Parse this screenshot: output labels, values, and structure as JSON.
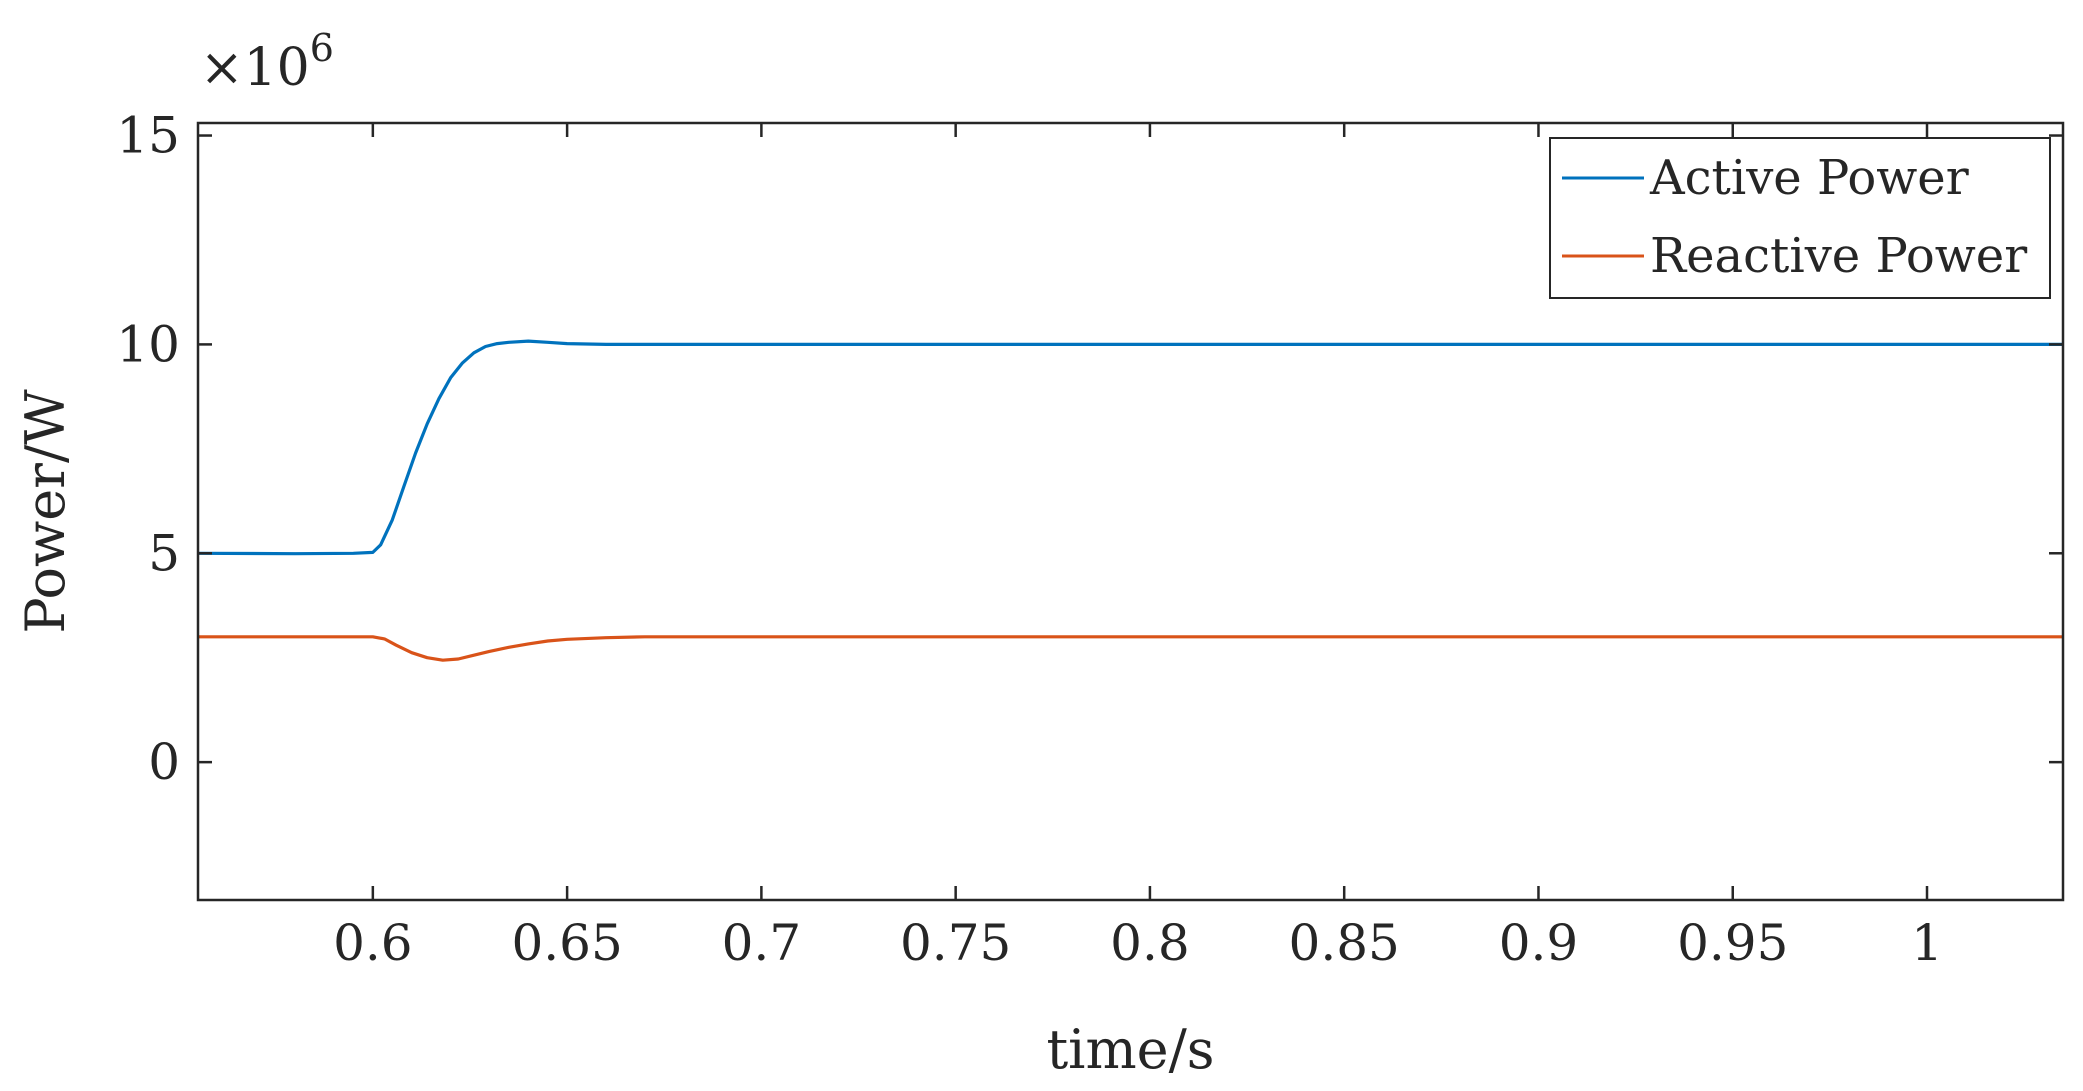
{
  "chart_data": {
    "type": "line",
    "xlabel": "time/s",
    "ylabel": "Power/W",
    "y_exponent": {
      "base": "×10",
      "power": "6"
    },
    "xlim": [
      0.555,
      1.035
    ],
    "ylim": [
      -3.3,
      15.3
    ],
    "x_ticks": [
      0.6,
      0.65,
      0.7,
      0.75,
      0.8,
      0.85,
      0.9,
      0.95,
      1
    ],
    "x_tick_labels": [
      "0.6",
      "0.65",
      "0.7",
      "0.75",
      "0.8",
      "0.85",
      "0.9",
      "0.95",
      "1"
    ],
    "y_ticks": [
      0,
      5,
      10,
      15
    ],
    "y_tick_labels": [
      "0",
      "5",
      "10",
      "15"
    ],
    "grid": false,
    "legend_position": "top-right",
    "series": [
      {
        "name": "Active Power",
        "color": "#0072BD",
        "points": [
          [
            0.555,
            5.0
          ],
          [
            0.58,
            4.99
          ],
          [
            0.595,
            5.0
          ],
          [
            0.6,
            5.02
          ],
          [
            0.602,
            5.2
          ],
          [
            0.605,
            5.8
          ],
          [
            0.608,
            6.6
          ],
          [
            0.611,
            7.4
          ],
          [
            0.614,
            8.1
          ],
          [
            0.617,
            8.7
          ],
          [
            0.62,
            9.2
          ],
          [
            0.623,
            9.55
          ],
          [
            0.626,
            9.8
          ],
          [
            0.629,
            9.95
          ],
          [
            0.632,
            10.02
          ],
          [
            0.635,
            10.05
          ],
          [
            0.64,
            10.08
          ],
          [
            0.645,
            10.05
          ],
          [
            0.65,
            10.02
          ],
          [
            0.66,
            10.0
          ],
          [
            0.7,
            10.0
          ],
          [
            0.8,
            10.0
          ],
          [
            0.9,
            10.0
          ],
          [
            1.0,
            10.0
          ],
          [
            1.035,
            10.0
          ]
        ]
      },
      {
        "name": "Reactive Power",
        "color": "#D95319",
        "points": [
          [
            0.555,
            3.0
          ],
          [
            0.6,
            3.0
          ],
          [
            0.603,
            2.95
          ],
          [
            0.606,
            2.8
          ],
          [
            0.61,
            2.62
          ],
          [
            0.614,
            2.5
          ],
          [
            0.618,
            2.44
          ],
          [
            0.622,
            2.47
          ],
          [
            0.626,
            2.56
          ],
          [
            0.63,
            2.65
          ],
          [
            0.635,
            2.75
          ],
          [
            0.64,
            2.83
          ],
          [
            0.645,
            2.9
          ],
          [
            0.65,
            2.94
          ],
          [
            0.66,
            2.98
          ],
          [
            0.67,
            3.0
          ],
          [
            0.7,
            3.0
          ],
          [
            0.8,
            3.0
          ],
          [
            0.9,
            3.0
          ],
          [
            1.0,
            3.0
          ],
          [
            1.035,
            3.0
          ]
        ]
      }
    ]
  }
}
